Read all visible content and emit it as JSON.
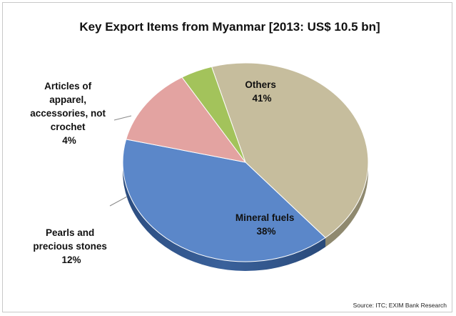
{
  "chart_data": {
    "type": "pie",
    "title": "Key Export Items from Myanmar [2013: US$ 10.5 bn]",
    "source": "Source: ITC; EXIM Bank Research",
    "slices": [
      {
        "label": "Others",
        "value": 41,
        "value_label": "41%",
        "color": "#c6bd9d"
      },
      {
        "label": "Mineral fuels",
        "value": 38,
        "value_label": "38%",
        "color": "#5b87c9"
      },
      {
        "label": "Pearls and precious stones",
        "value": 12,
        "value_label": "12%",
        "color": "#e3a3a1"
      },
      {
        "label": "Articles of apparel, accessories, not crochet",
        "value": 4,
        "value_label": "4%",
        "color": "#a3c35b"
      }
    ]
  }
}
